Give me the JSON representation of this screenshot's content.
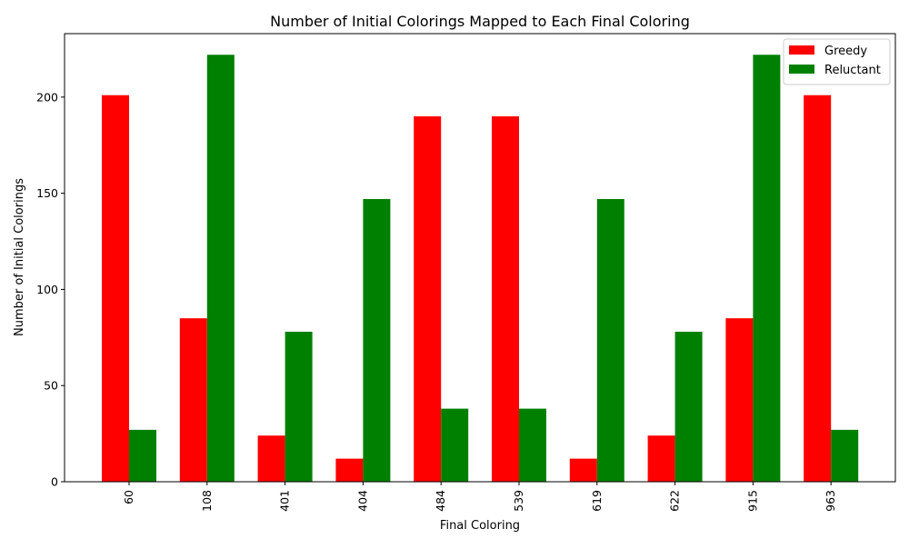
{
  "chart_data": {
    "type": "bar",
    "title": "Number of Initial Colorings Mapped to Each Final Coloring",
    "xlabel": "Final Coloring",
    "ylabel": "Number of Initial Colorings",
    "categories": [
      "60",
      "108",
      "401",
      "404",
      "484",
      "539",
      "619",
      "622",
      "915",
      "963"
    ],
    "series": [
      {
        "name": "Greedy",
        "color": "#ff0000",
        "values": [
          201,
          85,
          24,
          12,
          190,
          190,
          12,
          24,
          85,
          201
        ]
      },
      {
        "name": "Reluctant",
        "color": "#008000",
        "values": [
          27,
          222,
          78,
          147,
          38,
          38,
          147,
          78,
          222,
          27
        ]
      }
    ],
    "ylim": [
      0,
      233
    ],
    "yticks": [
      0,
      50,
      100,
      150,
      200
    ],
    "ytick_labels": [
      "0",
      "50",
      "100",
      "150",
      "200"
    ],
    "grid": false,
    "legend_position": "top-right",
    "x_tick_rotation": "vertical"
  }
}
